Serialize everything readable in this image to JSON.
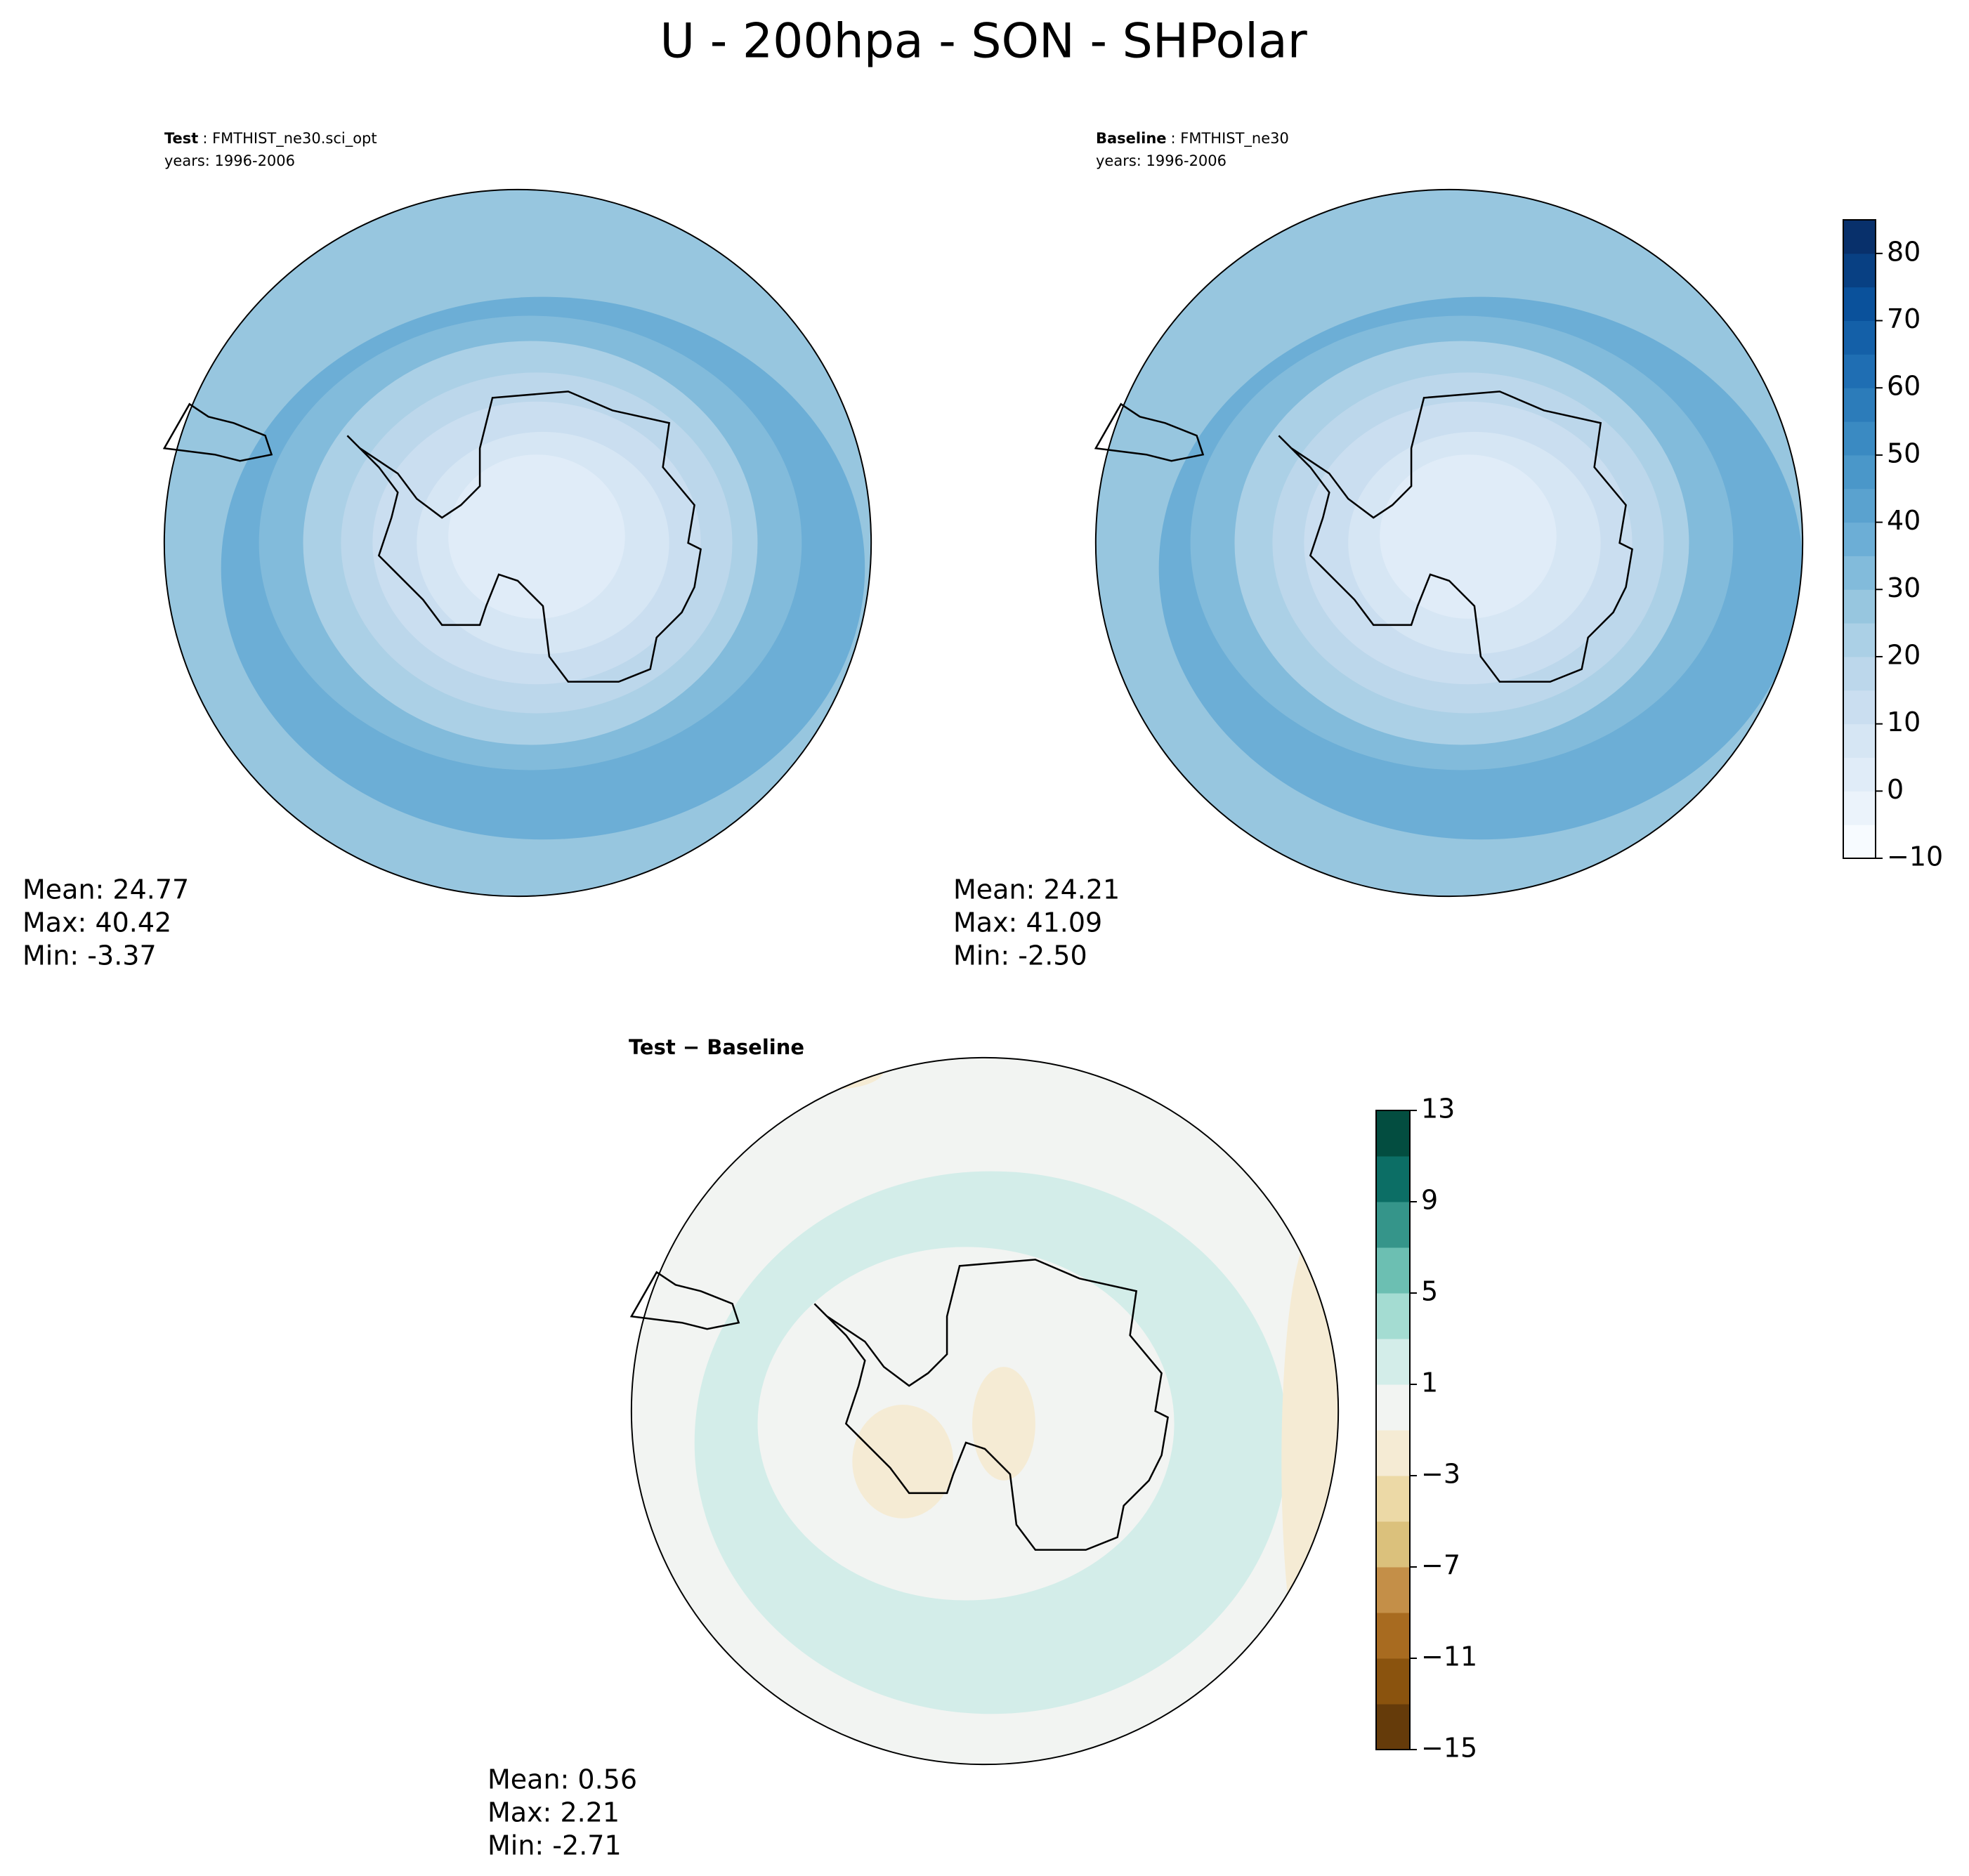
{
  "title": "U - 200hpa - SON - SHPolar",
  "chart_data": [
    {
      "type": "polar-contour",
      "title_bold": "Test",
      "title_rest": ": FMTHIST_ne30.sci_opt",
      "years": "years: 1996-2006",
      "stats": [
        "Mean: 24.77",
        "Max: 40.42",
        "Min: -3.37"
      ]
    },
    {
      "type": "polar-contour",
      "title_bold": "Baseline",
      "title_rest": ": FMTHIST_ne30",
      "years": "years: 1996-2006",
      "stats": [
        "Mean: 24.21",
        "Max: 41.09",
        "Min: -2.50"
      ],
      "colorbar": {
        "clim": [
          -10,
          85
        ],
        "colors": [
          "#f7fbff",
          "#ebf3fb",
          "#e0ecf8",
          "#d6e6f4",
          "#cadef0",
          "#bcd7eb",
          "#abd0e6",
          "#97c6df",
          "#82bbdb",
          "#6caed6",
          "#5aa2cf",
          "#4a97c9",
          "#3a8ac2",
          "#2c7cba",
          "#1f6eb3",
          "#1460a8",
          "#0a519b",
          "#084083",
          "#08306b"
        ],
        "ticks": [
          {
            "value": -10,
            "label": "−10"
          },
          0,
          10,
          20,
          30,
          40,
          50,
          60,
          70,
          80
        ]
      }
    },
    {
      "type": "polar-contour",
      "title_bold": "Test − Baseline",
      "stats": [
        "Mean:  0.56",
        "Max:  2.21",
        "Min: -2.71"
      ],
      "colorbar": {
        "clim": [
          -15,
          13
        ],
        "colors": [
          "#653b0a",
          "#8a530e",
          "#a86b20",
          "#c48f48",
          "#dbc17c",
          "#ecd9a6",
          "#f5ebd4",
          "#f2f4f2",
          "#d3ede9",
          "#a4dcd2",
          "#6cbfb2",
          "#35958a",
          "#0c6e65",
          "#034d40"
        ],
        "ticks": [
          {
            "value": -15,
            "label": "−15"
          },
          {
            "value": -11,
            "label": "−11"
          },
          {
            "value": -7,
            "label": "−7"
          },
          {
            "value": -3,
            "label": "−3"
          },
          1,
          5,
          9,
          13
        ]
      }
    }
  ]
}
